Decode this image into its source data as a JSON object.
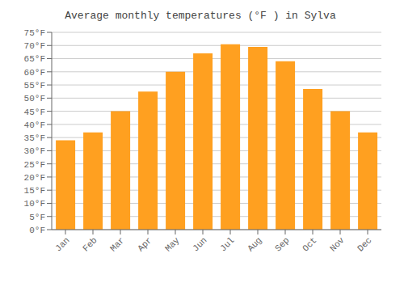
{
  "chart_data": {
    "type": "bar",
    "title": "Average monthly temperatures (°F ) in Sylva",
    "categories": [
      "Jan",
      "Feb",
      "Mar",
      "Apr",
      "May",
      "Jun",
      "Jul",
      "Aug",
      "Sep",
      "Oct",
      "Nov",
      "Dec"
    ],
    "values": [
      34,
      37,
      45,
      52.5,
      60,
      67,
      70.5,
      69.5,
      64,
      53.5,
      45,
      37
    ],
    "color": "#FFA020",
    "ylim": [
      0,
      75
    ],
    "yticks": [
      {
        "value": 0,
        "label": "0°F"
      },
      {
        "value": 5,
        "label": "5°F"
      },
      {
        "value": 10,
        "label": "10°F"
      },
      {
        "value": 15,
        "label": "15°F"
      },
      {
        "value": 20,
        "label": "20°F"
      },
      {
        "value": 25,
        "label": "25°F"
      },
      {
        "value": 30,
        "label": "30°F"
      },
      {
        "value": 35,
        "label": "35°F"
      },
      {
        "value": 40,
        "label": "40°F"
      },
      {
        "value": 45,
        "label": "45°F"
      },
      {
        "value": 50,
        "label": "50°F"
      },
      {
        "value": 55,
        "label": "55°F"
      },
      {
        "value": 60,
        "label": "60°F"
      },
      {
        "value": 65,
        "label": "65°F"
      },
      {
        "value": 70,
        "label": "70°F"
      },
      {
        "value": 75,
        "label": "75°F"
      }
    ],
    "grid": true
  }
}
